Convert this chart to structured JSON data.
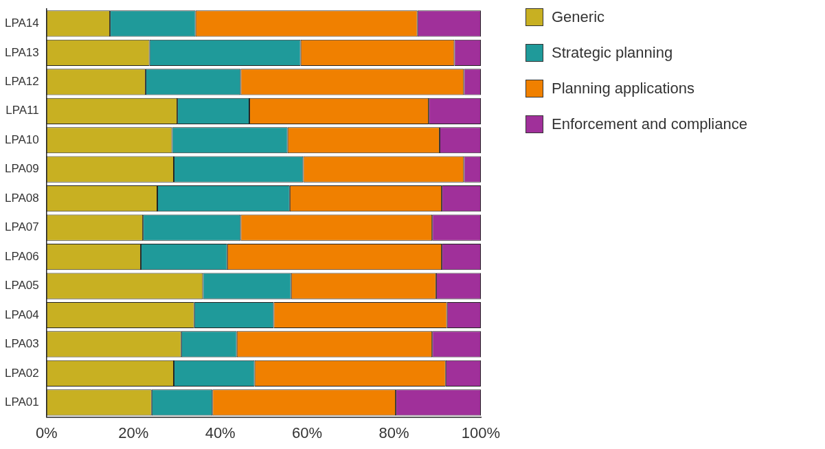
{
  "chart_data": {
    "type": "bar",
    "orientation": "horizontal",
    "stacked": true,
    "legend": "right",
    "grid": false,
    "categories": [
      "LPA14",
      "LPA13",
      "LPA12",
      "LPA11",
      "LPA10",
      "LPA09",
      "LPA08",
      "LPA07",
      "LPA06",
      "LPA05",
      "LPA04",
      "LPA03",
      "LPA02",
      "LPA01"
    ],
    "xlim": [
      0,
      100
    ],
    "xticks": [
      {
        "value": 0,
        "label": "0%"
      },
      {
        "value": 20,
        "label": "20%"
      },
      {
        "value": 40,
        "label": "40%"
      },
      {
        "value": 60,
        "label": "60%"
      },
      {
        "value": 80,
        "label": "80%"
      },
      {
        "value": 100,
        "label": "100%"
      }
    ],
    "series": [
      {
        "name": "Generic",
        "color": "#c8b022",
        "values": [
          14.6,
          23.7,
          22.8,
          30.1,
          28.9,
          29.3,
          25.5,
          22.2,
          21.7,
          36.0,
          34.0,
          31.0,
          29.3,
          24.2
        ]
      },
      {
        "name": "Strategic planning",
        "color": "#1f9a9a",
        "values": [
          19.7,
          34.8,
          21.9,
          16.6,
          26.6,
          29.8,
          30.5,
          22.5,
          19.9,
          20.3,
          18.3,
          12.8,
          18.6,
          14.0
        ]
      },
      {
        "name": "Planning applications",
        "color": "#f08000",
        "values": [
          51.1,
          35.4,
          51.4,
          41.3,
          35.0,
          37.0,
          35.0,
          44.1,
          49.4,
          33.4,
          39.9,
          45.0,
          44.0,
          42.2
        ]
      },
      {
        "name": "Enforcement and compliance",
        "color": "#a0309a",
        "values": [
          14.6,
          6.1,
          3.9,
          12.0,
          9.5,
          3.9,
          9.0,
          11.2,
          9.0,
          10.3,
          7.8,
          11.2,
          8.1,
          19.6
        ]
      }
    ]
  }
}
